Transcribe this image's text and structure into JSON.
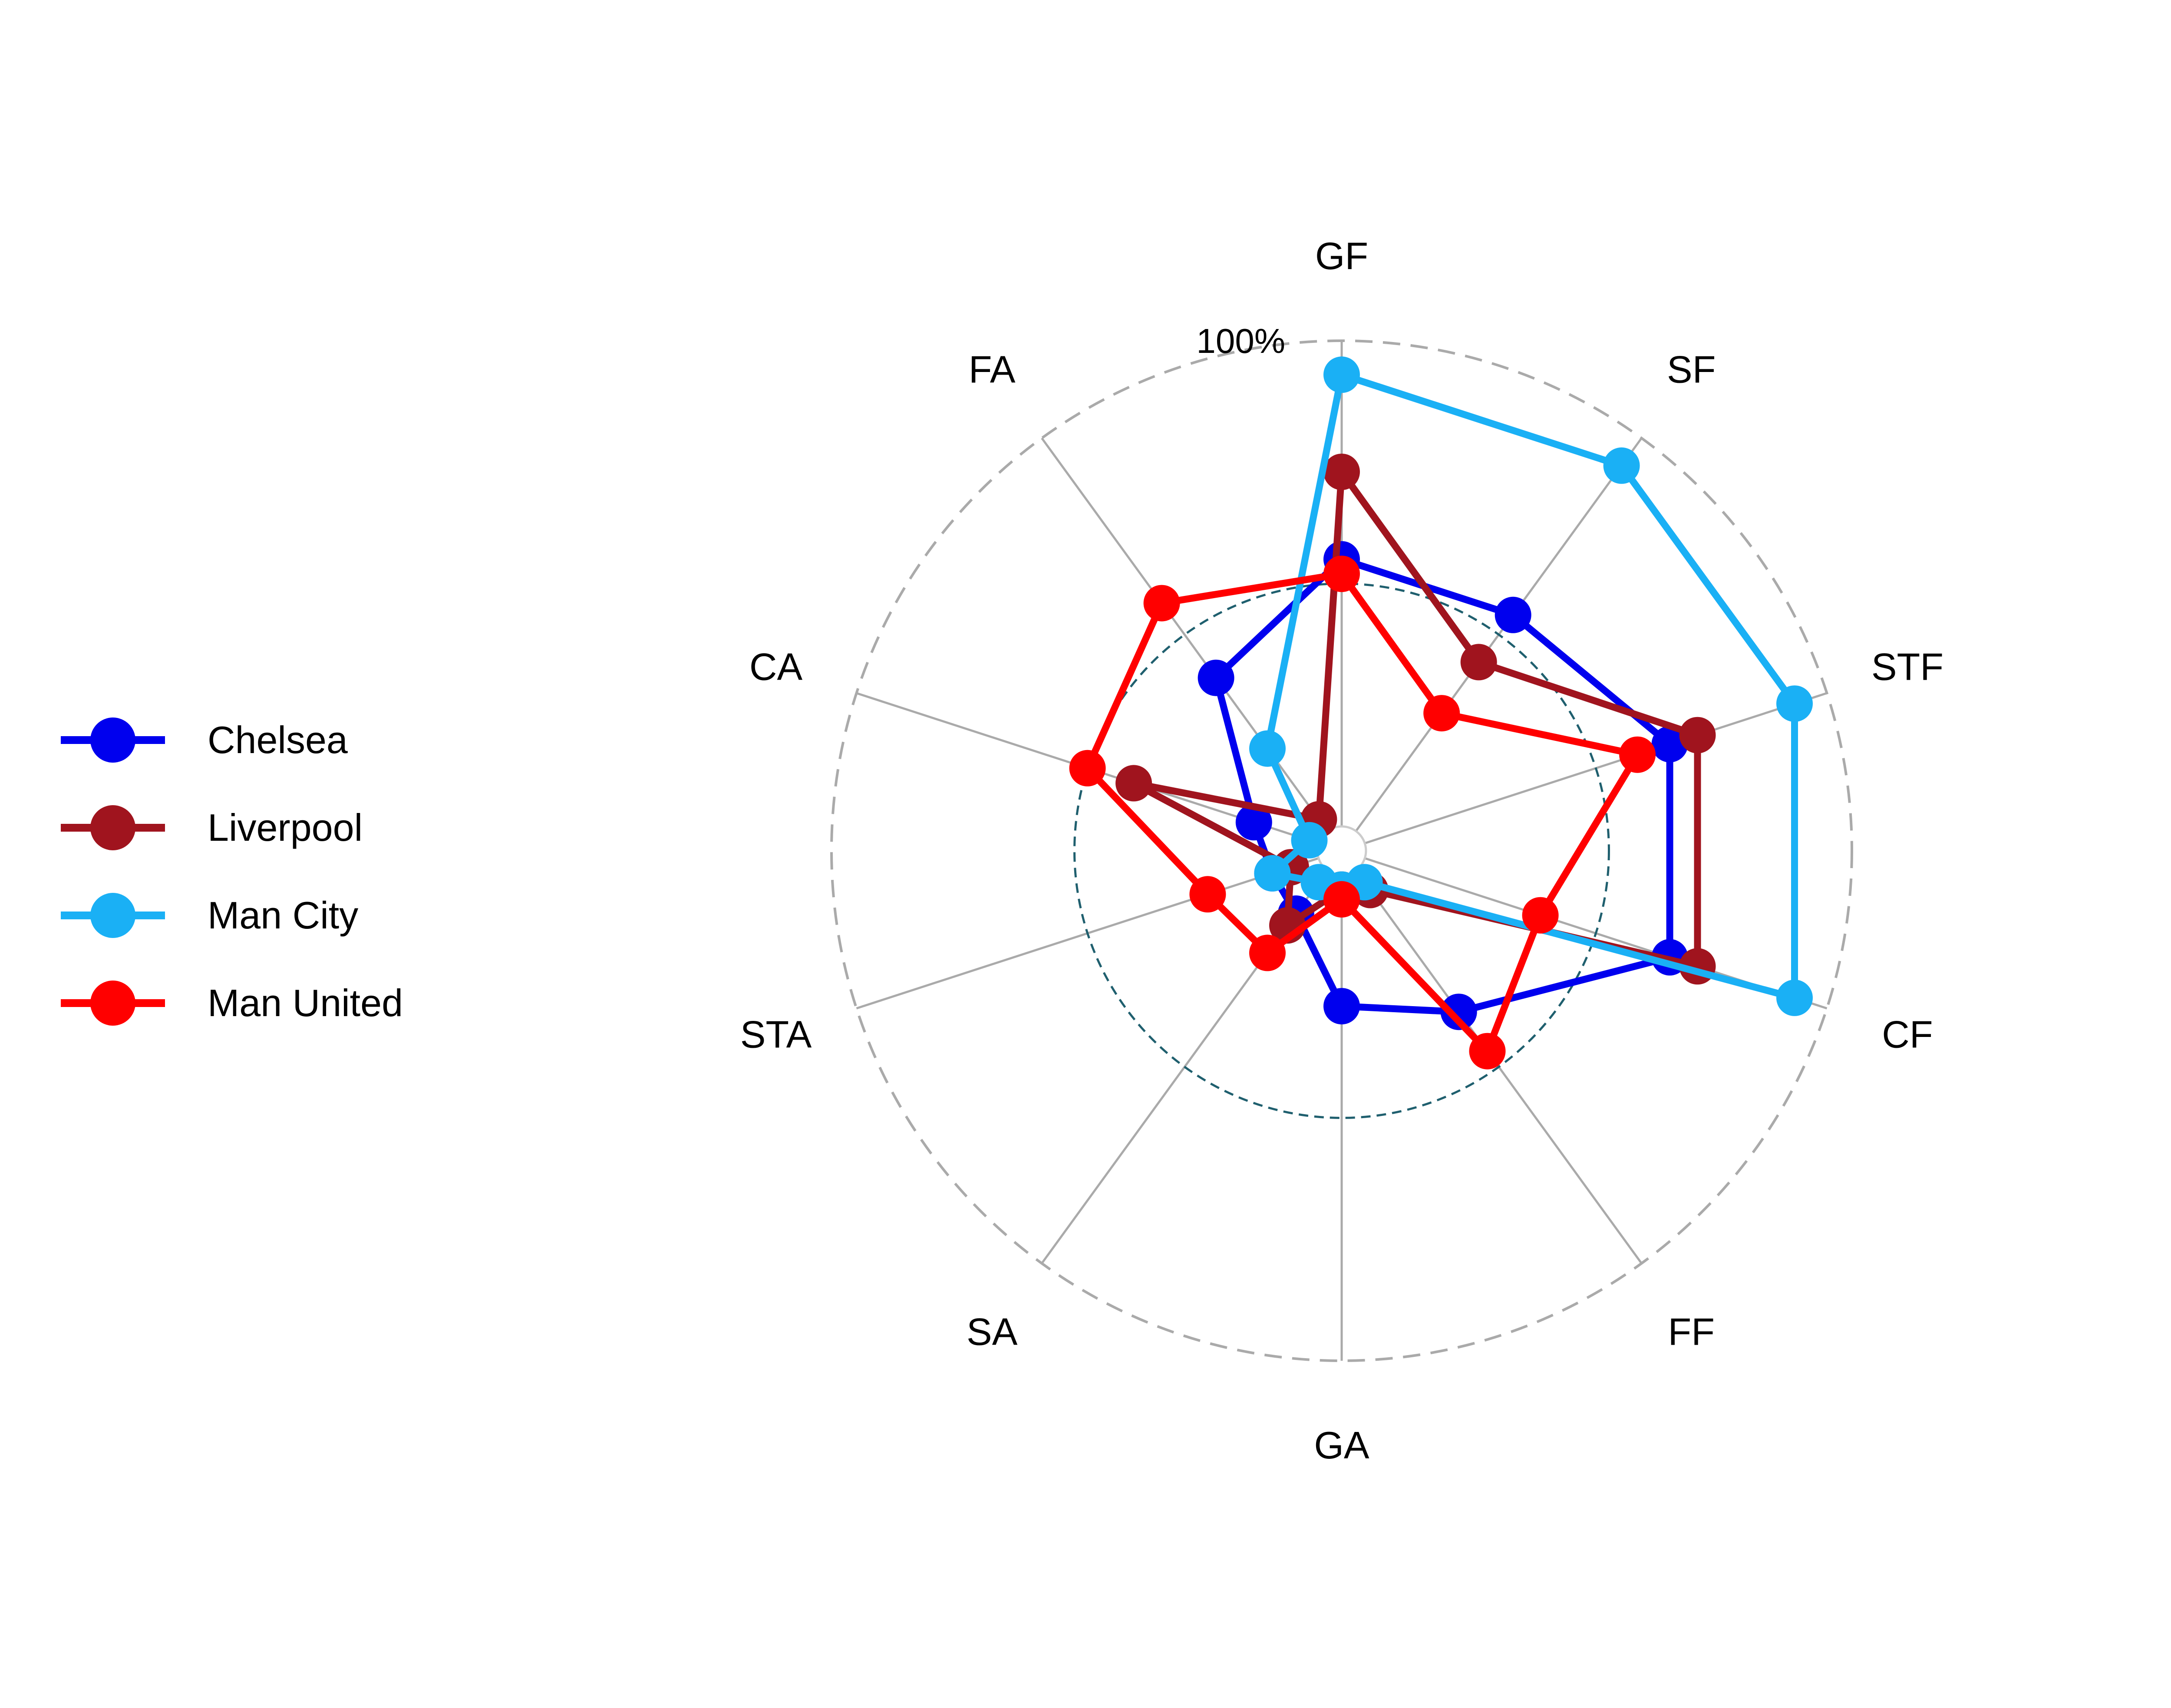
{
  "chart_data": {
    "type": "radar",
    "axes": [
      "GF",
      "SF",
      "STF",
      "CF",
      "FF",
      "GA",
      "SA",
      "STA",
      "CA",
      "FA"
    ],
    "scale_label": "100%",
    "rmin": -0.05,
    "rmax": 1.0,
    "reference_ring": 0.5,
    "legend_position": "left",
    "series": [
      {
        "name": "Chelsea",
        "color": "#0000ee",
        "values": [
          0.55,
          0.55,
          0.66,
          0.66,
          0.36,
          0.27,
          0.11,
          0.1,
          0.14,
          0.39
        ]
      },
      {
        "name": "Liverpool",
        "color": "#a0141e",
        "values": [
          0.73,
          0.43,
          0.72,
          0.72,
          0.05,
          0.03,
          0.14,
          0.06,
          0.4,
          0.03
        ]
      },
      {
        "name": "Man City",
        "color": "#1ab0f5",
        "values": [
          0.93,
          0.93,
          0.93,
          0.93,
          0.03,
          0.03,
          0.03,
          0.1,
          0.02,
          0.21
        ]
      },
      {
        "name": "Man United",
        "color": "#ff0000",
        "values": [
          0.52,
          0.3,
          0.59,
          0.38,
          0.46,
          0.05,
          0.21,
          0.24,
          0.5,
          0.58
        ]
      }
    ]
  }
}
